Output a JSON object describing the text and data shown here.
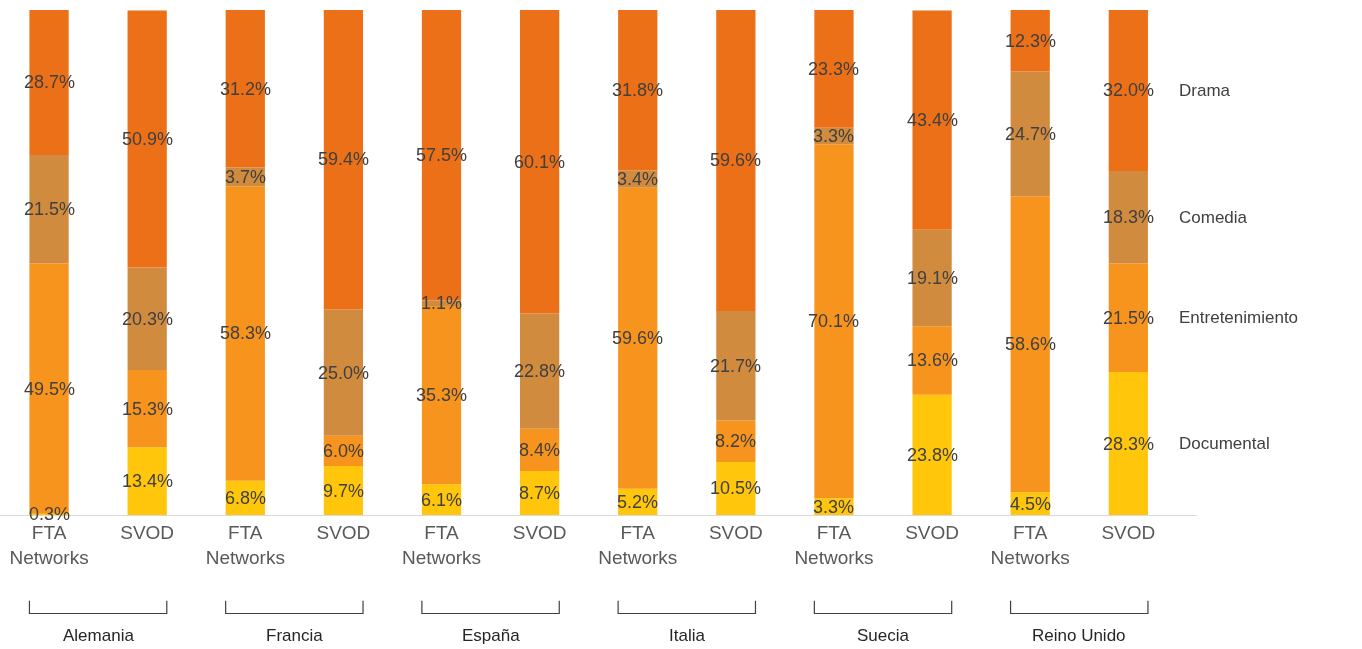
{
  "chart_data": {
    "type": "bar",
    "stacked": true,
    "ylim": [
      0,
      100
    ],
    "tick_labels": "x",
    "legend": false,
    "categories": [
      "FTA Networks",
      "SVOD",
      "FTA Networks",
      "SVOD",
      "FTA Networks",
      "SVOD",
      "FTA Networks",
      "SVOD",
      "FTA Networks",
      "SVOD",
      "FTA Networks",
      "SVOD"
    ],
    "series": [
      {
        "name": "Documental",
        "color": "#ffc60b",
        "values": [
          0.3,
          13.4,
          6.8,
          9.7,
          6.1,
          8.7,
          5.2,
          10.5,
          3.3,
          23.8,
          4.5,
          28.3
        ],
        "value_labels": [
          "0.3%",
          "13.4%",
          "6.8%",
          "9.7%",
          "6.1%",
          "8.7%",
          "5.2%",
          "10.5%",
          "3.3%",
          "23.8%",
          "4.5%",
          "28.3%"
        ]
      },
      {
        "name": "Entretenimiento",
        "color": "#f7941d",
        "values": [
          49.5,
          15.3,
          58.3,
          6.0,
          35.3,
          8.4,
          59.6,
          8.2,
          70.1,
          13.6,
          58.6,
          21.5
        ],
        "value_labels": [
          "49.5%",
          "15.3%",
          "58.3%",
          "6.0%",
          "35.3%",
          "8.4%",
          "59.6%",
          "8.2%",
          "70.1%",
          "13.6%",
          "58.6%",
          "21.5%"
        ]
      },
      {
        "name": "Comedia",
        "color": "#d08b3f",
        "values": [
          21.5,
          20.3,
          3.7,
          25.0,
          1.1,
          22.8,
          3.4,
          21.7,
          3.3,
          19.1,
          24.7,
          18.3
        ],
        "value_labels": [
          "21.5%",
          "20.3%",
          "3.7%",
          "25.0%",
          "1.1%",
          "22.8%",
          "3.4%",
          "21.7%",
          "3.3%",
          "19.1%",
          "24.7%",
          "18.3%"
        ]
      },
      {
        "name": "Drama",
        "color": "#eb7017",
        "values": [
          28.7,
          50.9,
          31.2,
          59.4,
          57.5,
          60.1,
          31.8,
          59.6,
          23.3,
          43.4,
          12.3,
          32.0
        ],
        "value_labels": [
          "28.7%",
          "50.9%",
          "31.2%",
          "59.4%",
          "57.5%",
          "60.1%",
          "31.8%",
          "59.6%",
          "23.3%",
          "43.4%",
          "12.3%",
          "32.0%"
        ]
      }
    ],
    "annotations": [
      "Alemania",
      "Francia",
      "España",
      "Italia",
      "Suecia",
      "Reino Unido"
    ]
  }
}
